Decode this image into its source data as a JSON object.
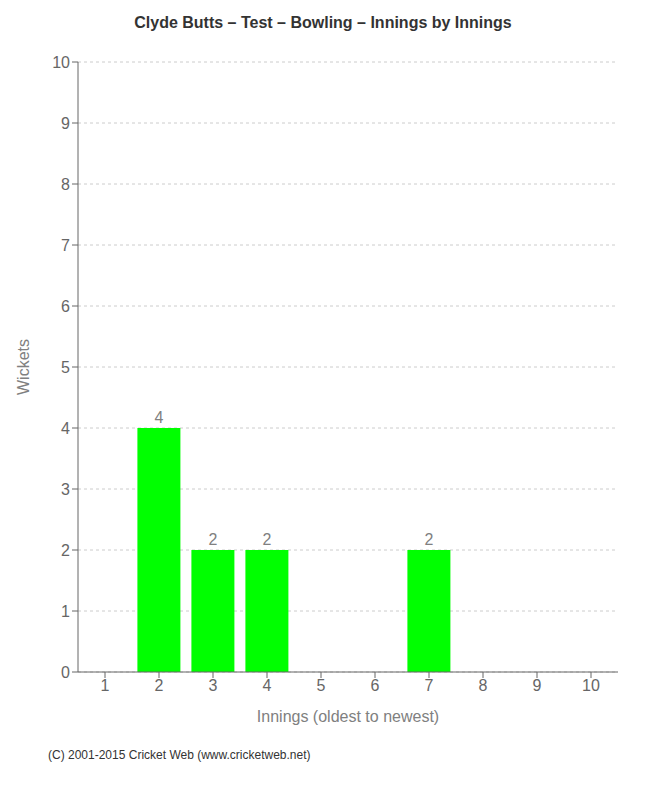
{
  "chart_data": {
    "type": "bar",
    "title": "Clyde Butts – Test – Bowling – Innings by Innings",
    "xlabel": "Innings (oldest to newest)",
    "ylabel": "Wickets",
    "categories": [
      1,
      2,
      3,
      4,
      5,
      6,
      7,
      8,
      9,
      10
    ],
    "values": [
      0,
      4,
      2,
      2,
      0,
      0,
      2,
      0,
      0,
      0
    ],
    "color": "#00ff00",
    "ylim": [
      0,
      10
    ],
    "yticks": [
      0,
      1,
      2,
      3,
      4,
      5,
      6,
      7,
      8,
      9,
      10
    ],
    "grid": true,
    "data_labels": true,
    "annotations": [
      "(C) 2001-2015 Cricket Web (www.cricketweb.net)"
    ]
  }
}
